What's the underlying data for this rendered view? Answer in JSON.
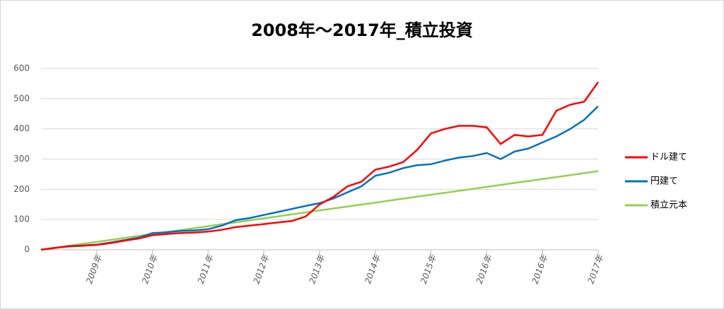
{
  "chart_data": {
    "type": "line",
    "title": "2008年～2017年_積立投資",
    "x": [
      0,
      0.25,
      0.5,
      0.75,
      1,
      1.25,
      1.5,
      1.75,
      2,
      2.25,
      2.5,
      2.75,
      3,
      3.25,
      3.5,
      3.75,
      4,
      4.25,
      4.5,
      4.75,
      5,
      5.25,
      5.5,
      5.75,
      6,
      6.25,
      6.5,
      6.75,
      7,
      7.25,
      7.5,
      7.75,
      8,
      8.25,
      8.5,
      8.75,
      9,
      9.25,
      9.5,
      9.75,
      10
    ],
    "xlim": [
      0,
      10
    ],
    "xticks": [
      {
        "value": 1,
        "label": "2009年"
      },
      {
        "value": 2,
        "label": "2010年"
      },
      {
        "value": 3,
        "label": "2011年"
      },
      {
        "value": 4,
        "label": "2012年"
      },
      {
        "value": 5,
        "label": "2013年"
      },
      {
        "value": 6,
        "label": "2014年"
      },
      {
        "value": 7,
        "label": "2015年"
      },
      {
        "value": 8,
        "label": "2016年"
      },
      {
        "value": 9,
        "label": "2016年"
      },
      {
        "value": 10,
        "label": "2017年"
      }
    ],
    "ylim": [
      0,
      600
    ],
    "yticks": [
      0,
      100,
      200,
      300,
      400,
      500,
      600
    ],
    "grid": true,
    "legend": "right",
    "series": [
      {
        "name": "ドル建て",
        "color": "#ff0000",
        "values": [
          0,
          6,
          11,
          13,
          16,
          22,
          30,
          37,
          48,
          52,
          55,
          57,
          60,
          66,
          75,
          80,
          85,
          90,
          95,
          110,
          150,
          175,
          210,
          225,
          265,
          275,
          290,
          330,
          385,
          400,
          410,
          410,
          405,
          350,
          380,
          375,
          380,
          460,
          480,
          490,
          555
        ]
      },
      {
        "name": "円建て",
        "color": "#0070c0",
        "values": [
          0,
          6,
          12,
          14,
          17,
          24,
          32,
          40,
          55,
          58,
          62,
          64,
          68,
          80,
          98,
          105,
          115,
          125,
          135,
          145,
          154,
          170,
          190,
          210,
          245,
          255,
          270,
          280,
          283,
          295,
          305,
          310,
          320,
          300,
          325,
          335,
          355,
          375,
          400,
          430,
          475
        ]
      },
      {
        "name": "積立元本",
        "color": "#92d050",
        "values": [
          0,
          6.5,
          13,
          19.5,
          26,
          32.5,
          39,
          45.5,
          52,
          58.5,
          65,
          71.5,
          78,
          84.5,
          91,
          97.5,
          104,
          110.5,
          117,
          123.5,
          130,
          136.5,
          143,
          149.5,
          156,
          162.5,
          169,
          175.5,
          182,
          188.5,
          195,
          201.5,
          208,
          214.5,
          221,
          227.5,
          234,
          240.5,
          247,
          253.5,
          260
        ]
      }
    ]
  }
}
